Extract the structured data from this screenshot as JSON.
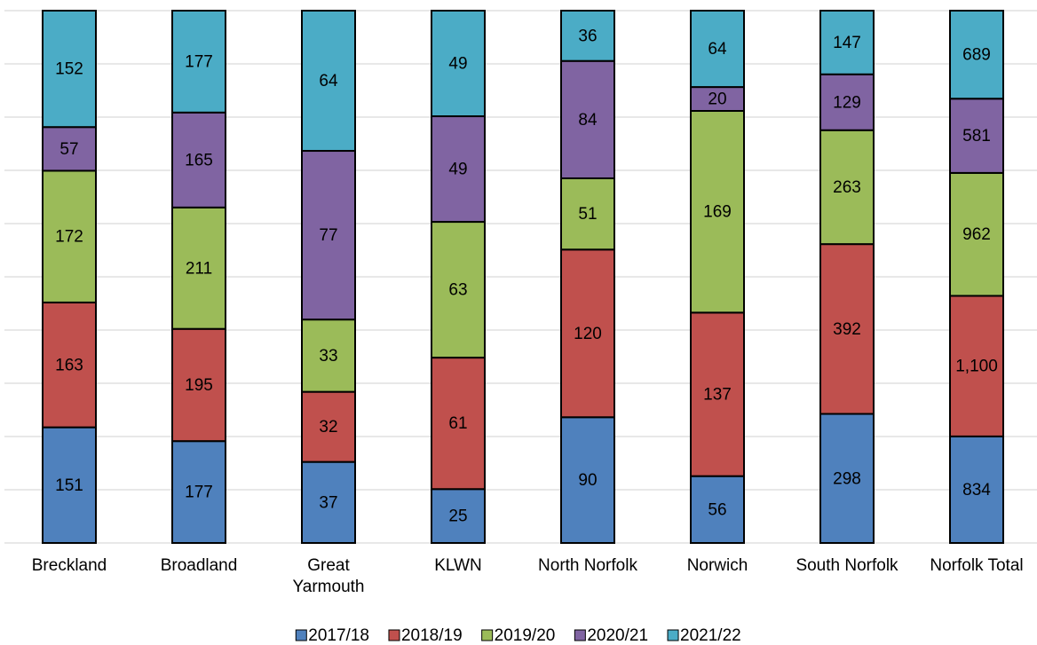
{
  "chart_data": {
    "type": "bar",
    "stacking": "percent",
    "categories": [
      "Breckland",
      "Broadland",
      "Great\nYarmouth",
      "KLWN",
      "North Norfolk",
      "Norwich",
      "South Norfolk",
      "Norfolk Total"
    ],
    "series": [
      {
        "name": "2017/18",
        "color": "#4f81bd",
        "values": [
          151,
          177,
          37,
          25,
          90,
          56,
          298,
          834
        ]
      },
      {
        "name": "2018/19",
        "color": "#c0504d",
        "values": [
          163,
          195,
          32,
          61,
          120,
          137,
          392,
          1100
        ],
        "value_labels": [
          "163",
          "195",
          "32",
          "61",
          "120",
          "137",
          "392",
          "1,100"
        ]
      },
      {
        "name": "2019/20",
        "color": "#9bbb59",
        "values": [
          172,
          211,
          33,
          63,
          51,
          169,
          263,
          962
        ]
      },
      {
        "name": "2020/21",
        "color": "#8064a2",
        "values": [
          57,
          165,
          77,
          49,
          84,
          20,
          129,
          581
        ]
      },
      {
        "name": "2021/22",
        "color": "#4bacc6",
        "values": [
          152,
          177,
          64,
          49,
          36,
          64,
          147,
          689
        ]
      }
    ],
    "ylim": [
      0,
      100
    ],
    "yticks": [
      0,
      10,
      20,
      30,
      40,
      50,
      60,
      70,
      80,
      90,
      100
    ],
    "tick_labels": false,
    "grid": true,
    "legend": "bottom"
  }
}
